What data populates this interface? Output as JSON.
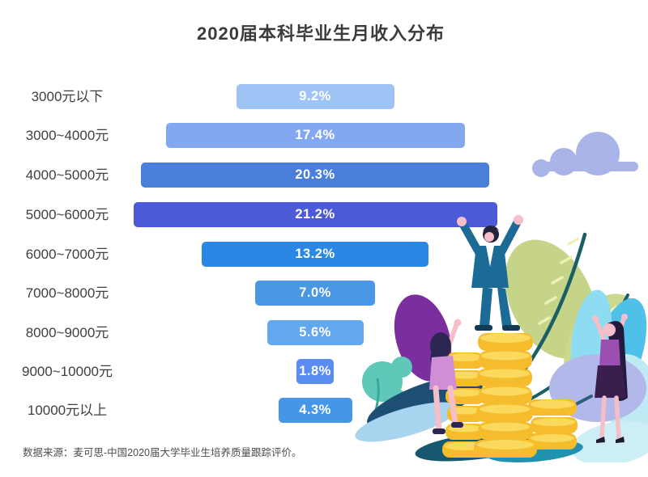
{
  "title": "2020届本科毕业生月收入分布",
  "source_note": "数据来源：麦可思-中国2020届大学毕业生培养质量跟踪评价。",
  "chart_data": {
    "type": "bar",
    "orientation": "horizontal-centered-funnel",
    "title": "2020届本科毕业生月收入分布",
    "categories": [
      "3000元以下",
      "3000~4000元",
      "4000~5000元",
      "5000~6000元",
      "6000~7000元",
      "7000~8000元",
      "8000~9000元",
      "9000~10000元",
      "10000元以上"
    ],
    "values": [
      9.2,
      17.4,
      20.3,
      21.2,
      13.2,
      7.0,
      5.6,
      1.8,
      4.3
    ],
    "value_labels": [
      "9.2%",
      "17.4%",
      "20.3%",
      "21.2%",
      "13.2%",
      "7.0%",
      "5.6%",
      "1.8%",
      "4.3%"
    ],
    "unit": "%",
    "xlim": [
      0,
      22
    ],
    "grid": false,
    "legend": "none",
    "value_label_position": "inside-center",
    "bar_colors": [
      "#9fc3f5",
      "#84a8ef",
      "#4a7edb",
      "#4d5ad8",
      "#2b87e6",
      "#4a97e6",
      "#63a8ee",
      "#5b8df0",
      "#4696e8"
    ],
    "source": "数据来源：麦可思-中国2020届大学毕业生培养质量跟踪评价。"
  },
  "decor": {
    "cloud_color": "#a9b5e8",
    "leaf_green": "#c5d489",
    "leaf_teal": "#4fc0e8",
    "leaf_teal_light": "#8edcf2",
    "leaf_pale_blue": "#cdeef6",
    "leaf_purple": "#7b2e9e",
    "leaf_navy": "#1d4e73",
    "leaf_light_blue": "#a8d4f0",
    "blob_teal": "#5fc8b8",
    "blob_periwinkle": "#b3b8ea",
    "coin_gold": "#f5bd2e",
    "coin_highlight": "#fbd95c",
    "suit_color": "#1b6b96",
    "skin_color": "#f4bfc8"
  }
}
